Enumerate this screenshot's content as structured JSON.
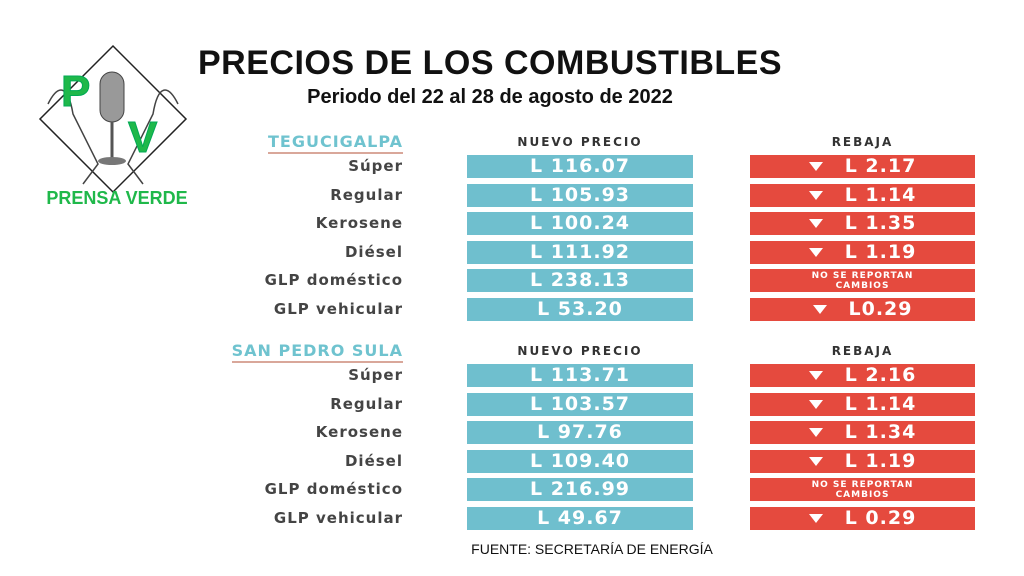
{
  "header": {
    "title": "PRECIOS DE LOS COMBUSTIBLES",
    "subtitle": "Periodo del 22 al 28 de agosto de 2022"
  },
  "logo": {
    "brand": "PRENSA VERDE",
    "letters": "PV",
    "color": "#1fb84a"
  },
  "columns": {
    "price": "NUEVO PRECIO",
    "discount": "REBAJA"
  },
  "sections": [
    {
      "city": "TEGUCIGALPA",
      "rows": [
        {
          "fuel": "Súper",
          "price": "L 116.07",
          "discount": "L 2.17"
        },
        {
          "fuel": "Regular",
          "price": "L 105.93",
          "discount": "L 1.14"
        },
        {
          "fuel": "Kerosene",
          "price": "L 100.24",
          "discount": "L 1.35"
        },
        {
          "fuel": "Diésel",
          "price": "L 111.92",
          "discount": "L 1.19"
        },
        {
          "fuel": "GLP doméstico",
          "price": "L 238.13",
          "note1": "NO SE REPORTAN",
          "note2": "CAMBIOS"
        },
        {
          "fuel": "GLP vehicular",
          "price": "L 53.20",
          "discount": "L0.29"
        }
      ]
    },
    {
      "city": "SAN PEDRO SULA",
      "rows": [
        {
          "fuel": "Súper",
          "price": "L 113.71",
          "discount": "L 2.16"
        },
        {
          "fuel": "Regular",
          "price": "L 103.57",
          "discount": "L 1.14"
        },
        {
          "fuel": "Kerosene",
          "price": "L 97.76",
          "discount": "L 1.34"
        },
        {
          "fuel": "Diésel",
          "price": "L 109.40",
          "discount": "L 1.19"
        },
        {
          "fuel": "GLP doméstico",
          "price": "L 216.99",
          "note1": "NO SE REPORTAN",
          "note2": "CAMBIOS"
        },
        {
          "fuel": "GLP vehicular",
          "price": "L 49.67",
          "discount": "L 0.29"
        }
      ]
    }
  ],
  "footer": "FUENTE: SECRETARÍA DE ENERGÍA",
  "colors": {
    "price_bg": "#6fbfce",
    "discount_bg": "#e54a3e",
    "city": "#6fc3cf"
  }
}
